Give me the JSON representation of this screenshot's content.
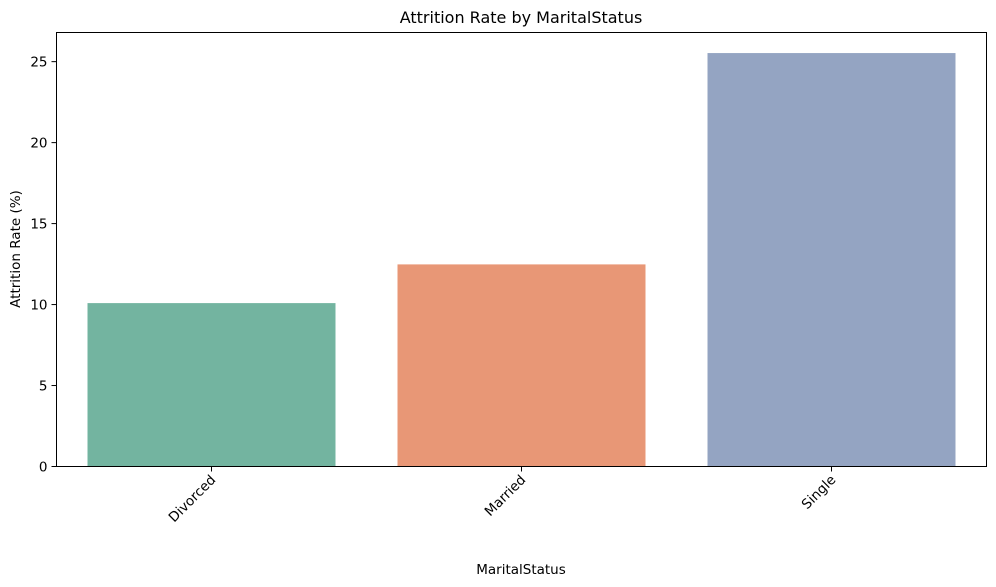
{
  "chart_data": {
    "type": "bar",
    "title": "Attrition Rate by MaritalStatus",
    "xlabel": "MaritalStatus",
    "ylabel": "Attrition Rate (%)",
    "categories": [
      "Divorced",
      "Married",
      "Single"
    ],
    "values": [
      10.09,
      12.48,
      25.53
    ],
    "colors": [
      "#73b4a0",
      "#e89776",
      "#94a4c2"
    ],
    "ylim": [
      0,
      26.8
    ],
    "yticks": [
      "0",
      "5",
      "10",
      "15",
      "20",
      "25"
    ],
    "grid": false,
    "legend": "none"
  }
}
